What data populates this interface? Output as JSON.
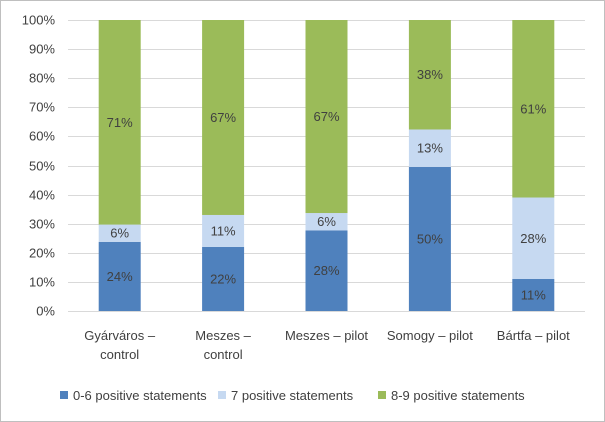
{
  "chart_data": {
    "type": "bar",
    "stacked": "percent",
    "categories": [
      [
        "Gyárváros –",
        "control"
      ],
      [
        "Meszes –",
        "control"
      ],
      [
        "Meszes – pilot"
      ],
      [
        "Somogy – pilot"
      ],
      [
        "Bártfa – pilot"
      ]
    ],
    "series": [
      {
        "name": "0-6 positive statements",
        "color": "#4f81bd",
        "values": [
          24,
          22,
          28,
          50,
          11
        ]
      },
      {
        "name": "7 positive statements",
        "color": "#c6d9f1",
        "values": [
          6,
          11,
          6,
          13,
          28
        ]
      },
      {
        "name": "8-9 positive statements",
        "color": "#9bbb59",
        "values": [
          71,
          67,
          67,
          38,
          61
        ]
      }
    ],
    "data_label_suffix": "%",
    "ylim": [
      0,
      100
    ],
    "yticks": [
      "0%",
      "10%",
      "20%",
      "30%",
      "40%",
      "50%",
      "60%",
      "70%",
      "80%",
      "90%",
      "100%"
    ],
    "grid": true,
    "legend": "bottom"
  }
}
